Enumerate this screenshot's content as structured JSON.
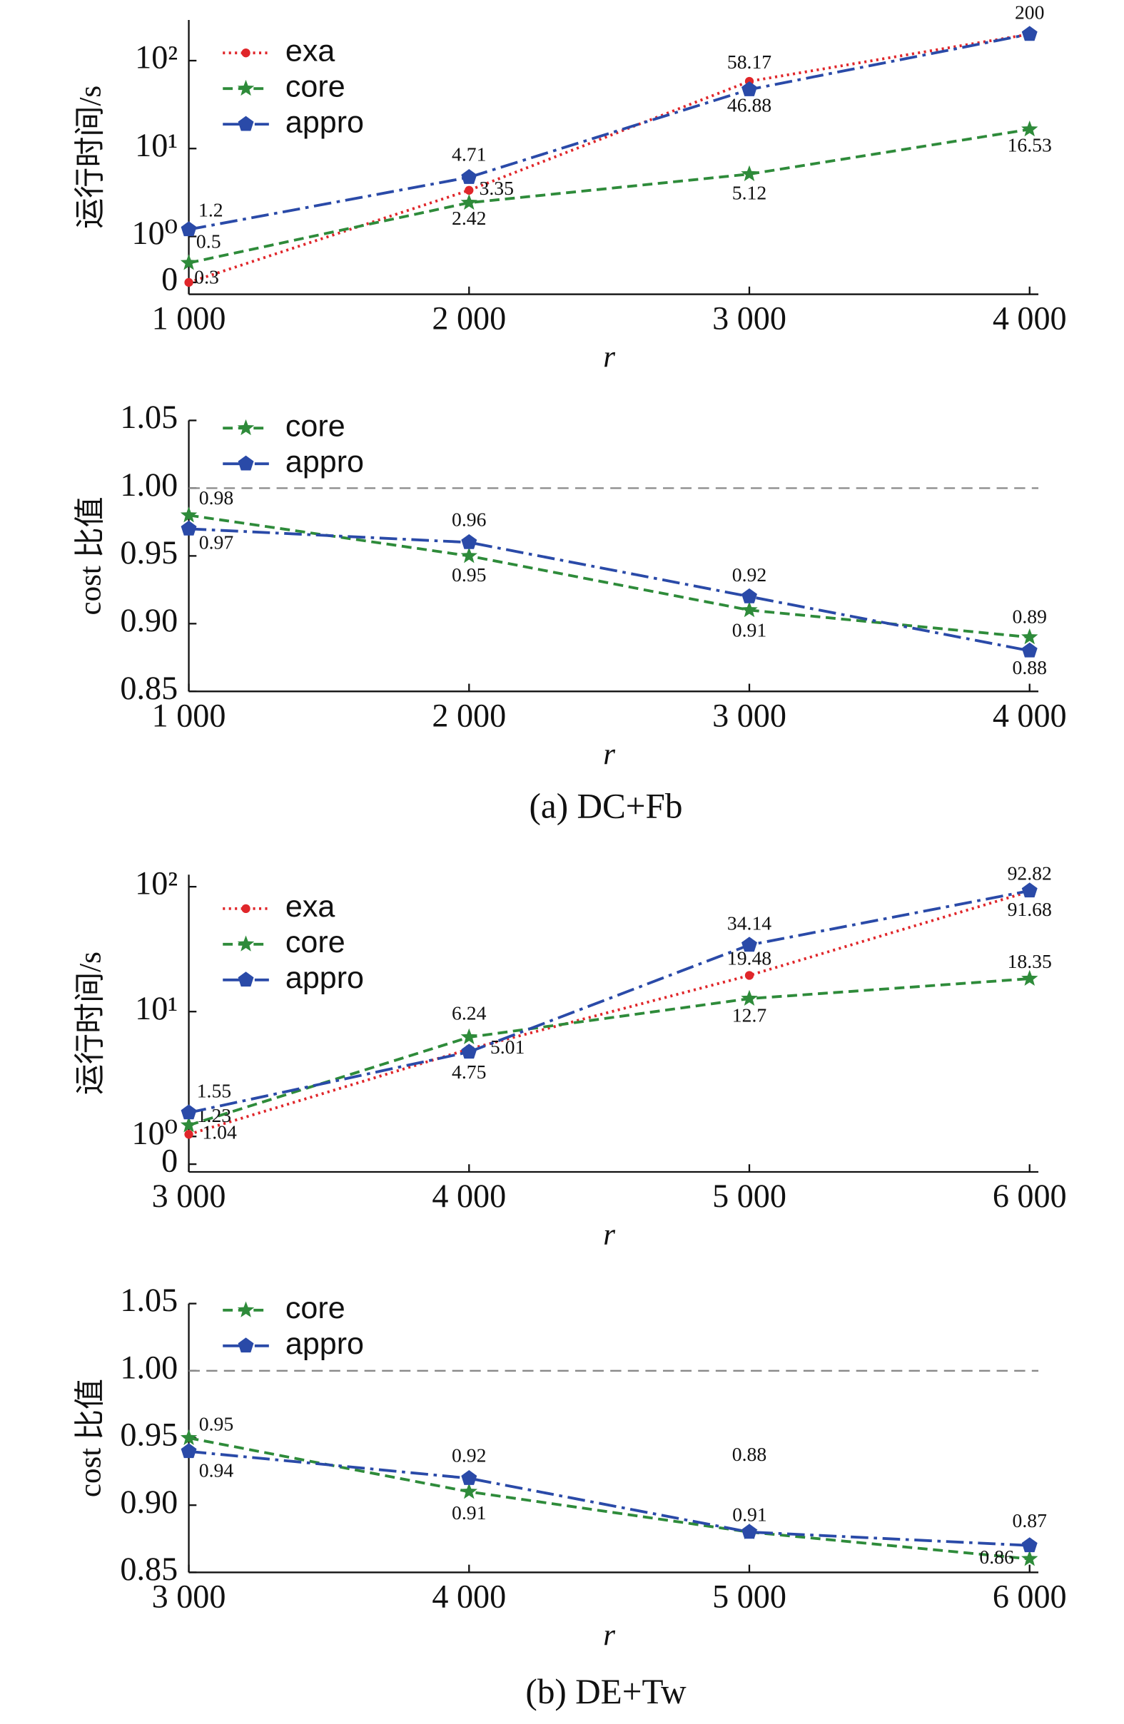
{
  "chart_data": [
    {
      "type": "line",
      "y_label": "运行时间/s",
      "x_label": "r",
      "log_y": true,
      "legend": "upper left",
      "x": [
        1000,
        2000,
        3000,
        4000
      ],
      "xlim": [
        1000,
        4000
      ],
      "xticks": [
        {
          "value": 1000,
          "label": "1 000"
        },
        {
          "value": 2000,
          "label": "2 000"
        },
        {
          "value": 3000,
          "label": "3 000"
        },
        {
          "value": 4000,
          "label": "4 000"
        }
      ],
      "ylim": [
        0.22,
        290
      ],
      "yticks": [
        {
          "value": 0.3,
          "label": "0"
        },
        {
          "value": 1,
          "label": "10⁰"
        },
        {
          "value": 10,
          "label": "10¹"
        },
        {
          "value": 100,
          "label": "10²"
        }
      ],
      "series": [
        {
          "name": "exa",
          "color": "#e0262a",
          "marker": "circle",
          "linestyle": "dotted",
          "values": [
            0.3,
            3.35,
            58.17,
            200
          ]
        },
        {
          "name": "core",
          "color": "#2e8b3a",
          "marker": "star",
          "linestyle": "dashed",
          "values": [
            0.5,
            2.42,
            5.12,
            16.53
          ]
        },
        {
          "name": "appro",
          "color": "#2a4aa8",
          "marker": "pentagon",
          "linestyle": "dashdot",
          "values": [
            1.2,
            4.71,
            46.88,
            200
          ]
        }
      ]
    },
    {
      "type": "line",
      "y_label": "cost 比值",
      "x_label": "r",
      "log_y": false,
      "legend": "upper left",
      "caption": "(a) DC+Fb",
      "x": [
        1000,
        2000,
        3000,
        4000
      ],
      "xlim": [
        1000,
        4000
      ],
      "xticks": [
        {
          "value": 1000,
          "label": "1 000"
        },
        {
          "value": 2000,
          "label": "2 000"
        },
        {
          "value": 3000,
          "label": "3 000"
        },
        {
          "value": 4000,
          "label": "4 000"
        }
      ],
      "ylim": [
        0.85,
        1.05
      ],
      "yticks": [
        {
          "value": 0.85,
          "label": "0.85"
        },
        {
          "value": 0.9,
          "label": "0.90"
        },
        {
          "value": 0.95,
          "label": "0.95"
        },
        {
          "value": 1,
          "label": "1.00"
        },
        {
          "value": 1.05,
          "label": "1.05"
        }
      ],
      "hline": 1,
      "series": [
        {
          "name": "core",
          "color": "#2e8b3a",
          "marker": "star",
          "linestyle": "dashed",
          "values": [
            0.98,
            0.95,
            0.91,
            0.89
          ]
        },
        {
          "name": "appro",
          "color": "#2a4aa8",
          "marker": "pentagon",
          "linestyle": "dashdot",
          "values": [
            0.97,
            0.96,
            0.92,
            0.88
          ]
        }
      ]
    },
    {
      "type": "line",
      "y_label": "运行时间/s",
      "x_label": "r",
      "log_y": true,
      "legend": "upper left",
      "x": [
        3000,
        4000,
        5000,
        6000
      ],
      "xlim": [
        3000,
        6000
      ],
      "xticks": [
        {
          "value": 3000,
          "label": "3 000"
        },
        {
          "value": 4000,
          "label": "4 000"
        },
        {
          "value": 5000,
          "label": "5 000"
        },
        {
          "value": 6000,
          "label": "6 000"
        }
      ],
      "ylim": [
        0.52,
        125
      ],
      "yticks": [
        {
          "value": 0.6,
          "label": "0"
        },
        {
          "value": 1,
          "label": "10⁰"
        },
        {
          "value": 10,
          "label": "10¹"
        },
        {
          "value": 100,
          "label": "10²"
        }
      ],
      "series": [
        {
          "name": "exa",
          "color": "#e0262a",
          "marker": "circle",
          "linestyle": "dotted",
          "values": [
            1.04,
            5.01,
            19.48,
            91.68
          ]
        },
        {
          "name": "core",
          "color": "#2e8b3a",
          "marker": "star",
          "linestyle": "dashed",
          "values": [
            1.23,
            6.24,
            12.7,
            18.35
          ]
        },
        {
          "name": "appro",
          "color": "#2a4aa8",
          "marker": "pentagon",
          "linestyle": "dashdot",
          "values": [
            1.55,
            4.75,
            34.14,
            92.82
          ]
        }
      ]
    },
    {
      "type": "line",
      "y_label": "cost 比值",
      "x_label": "r",
      "log_y": false,
      "legend": "upper left",
      "caption": "(b) DE+Tw",
      "x": [
        3000,
        4000,
        5000,
        6000
      ],
      "xlim": [
        3000,
        6000
      ],
      "xticks": [
        {
          "value": 3000,
          "label": "3 000"
        },
        {
          "value": 4000,
          "label": "4 000"
        },
        {
          "value": 5000,
          "label": "5 000"
        },
        {
          "value": 6000,
          "label": "6 000"
        }
      ],
      "ylim": [
        0.85,
        1.05
      ],
      "yticks": [
        {
          "value": 0.85,
          "label": "0.85"
        },
        {
          "value": 0.9,
          "label": "0.90"
        },
        {
          "value": 0.95,
          "label": "0.95"
        },
        {
          "value": 1,
          "label": "1.00"
        },
        {
          "value": 1.05,
          "label": "1.05"
        }
      ],
      "hline": 1,
      "annotations": [
        "0.91"
      ],
      "series": [
        {
          "name": "core",
          "color": "#2e8b3a",
          "marker": "star",
          "linestyle": "dashed",
          "values": [
            0.95,
            0.91,
            0.88,
            0.86
          ]
        },
        {
          "name": "appro",
          "color": "#2a4aa8",
          "marker": "pentagon",
          "linestyle": "dashdot",
          "values": [
            0.94,
            0.92,
            0.88,
            0.87
          ]
        }
      ]
    }
  ]
}
